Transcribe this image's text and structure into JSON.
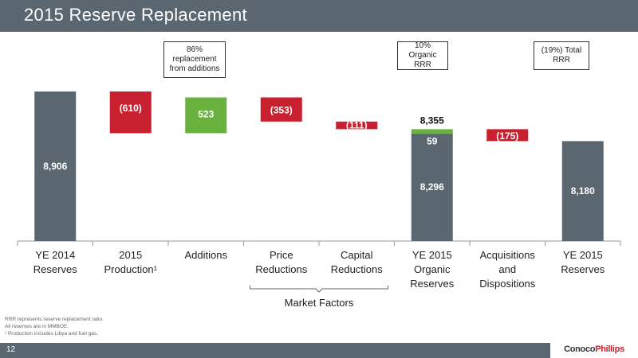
{
  "title": "2015 Reserve Replacement",
  "callouts": [
    {
      "text": "86% replacement from additions"
    },
    {
      "text": "10% Organic RRR"
    },
    {
      "text": "(19%) Total RRR"
    }
  ],
  "chart_data": {
    "type": "bar",
    "subtype": "waterfall",
    "categories": [
      [
        "YE 2014",
        "Reserves"
      ],
      [
        "2015",
        "Production¹"
      ],
      [
        "Additions"
      ],
      [
        "Price",
        "Reductions"
      ],
      [
        "Capital",
        "Reductions"
      ],
      [
        "YE 2015",
        "Organic",
        "Reserves"
      ],
      [
        "Acquisitions",
        "and",
        "Dispositions"
      ],
      [
        "YE 2015",
        "Reserves"
      ]
    ],
    "steps": [
      {
        "kind": "total",
        "start": 0,
        "end": 8906,
        "label": "8,906",
        "color": "#5b6770"
      },
      {
        "kind": "delta",
        "start": 8906,
        "end": 8296,
        "label": "(610)",
        "color": "#c8202e"
      },
      {
        "kind": "delta",
        "start": 8296,
        "end": 8819,
        "label": "523",
        "color": "#6ab23f"
      },
      {
        "kind": "delta",
        "start": 8819,
        "end": 8466,
        "label": "(353)",
        "color": "#c8202e"
      },
      {
        "kind": "delta",
        "start": 8466,
        "end": 8355,
        "label": "(111)",
        "color": "#c8202e"
      },
      {
        "kind": "total",
        "start": 0,
        "end": 8296,
        "label": "8,296",
        "color": "#5b6770",
        "stack": {
          "start": 8296,
          "end": 8355,
          "label": "59",
          "color": "#6ab23f"
        },
        "total_label": "8,355"
      },
      {
        "kind": "delta",
        "start": 8355,
        "end": 8180,
        "label": "(175)",
        "color": "#c8202e"
      },
      {
        "kind": "total",
        "start": 0,
        "end": 8180,
        "label": "8,180",
        "color": "#5b6770"
      }
    ],
    "group_label": "Market Factors",
    "unit": "MMBOE"
  },
  "footnotes": [
    "RRR represents reserve replacement ratio.",
    "All reserves are in MMBOE.",
    "¹ Production includes Libya and fuel gas."
  ],
  "page_number": "12",
  "logo": {
    "part1": "Conoco",
    "part2": "Phillips"
  }
}
